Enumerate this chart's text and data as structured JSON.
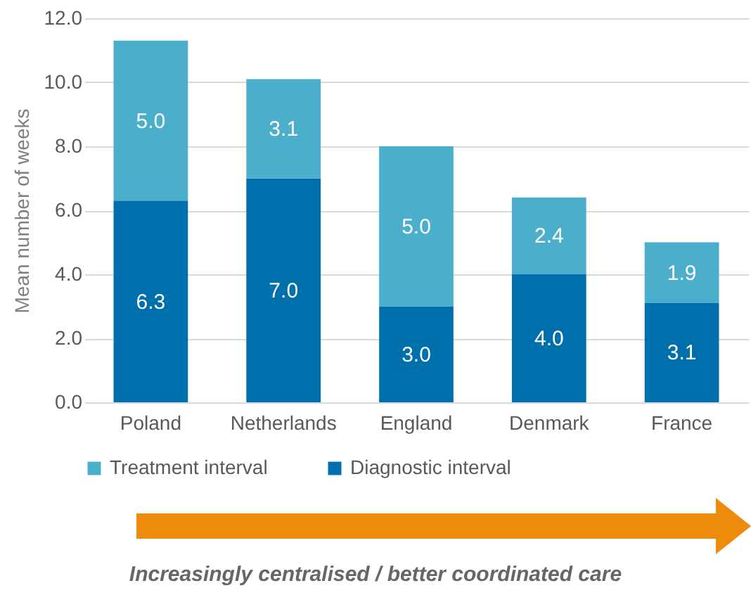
{
  "chart_data": {
    "type": "bar",
    "stacked": true,
    "ylabel": "Mean number of weeks",
    "categories": [
      "Poland",
      "Netherlands",
      "England",
      "Denmark",
      "France"
    ],
    "series": [
      {
        "name": "Diagnostic interval",
        "color": "#0070ad",
        "values": [
          6.3,
          7.0,
          3.0,
          4.0,
          3.1
        ],
        "value_labels": [
          "6.3",
          "7.0",
          "3.0",
          "4.0",
          "3.1"
        ]
      },
      {
        "name": "Treatment interval",
        "color": "#4bafcc",
        "values": [
          5.0,
          3.1,
          5.0,
          2.4,
          1.9
        ],
        "value_labels": [
          "5.0",
          "3.1",
          "5.0",
          "2.4",
          "1.9"
        ]
      }
    ],
    "ylim": [
      0,
      12
    ],
    "yticks": [
      {
        "value": 0,
        "label": "0.0"
      },
      {
        "value": 2,
        "label": "2.0"
      },
      {
        "value": 4,
        "label": "4.0"
      },
      {
        "value": 6,
        "label": "6.0"
      },
      {
        "value": 8,
        "label": "8.0"
      },
      {
        "value": 10,
        "label": "10.0"
      },
      {
        "value": 12,
        "label": "12.0"
      }
    ],
    "grid": "y",
    "legend": "bottom",
    "annotations": [
      "Increasingly centralised / better coordinated care"
    ]
  }
}
